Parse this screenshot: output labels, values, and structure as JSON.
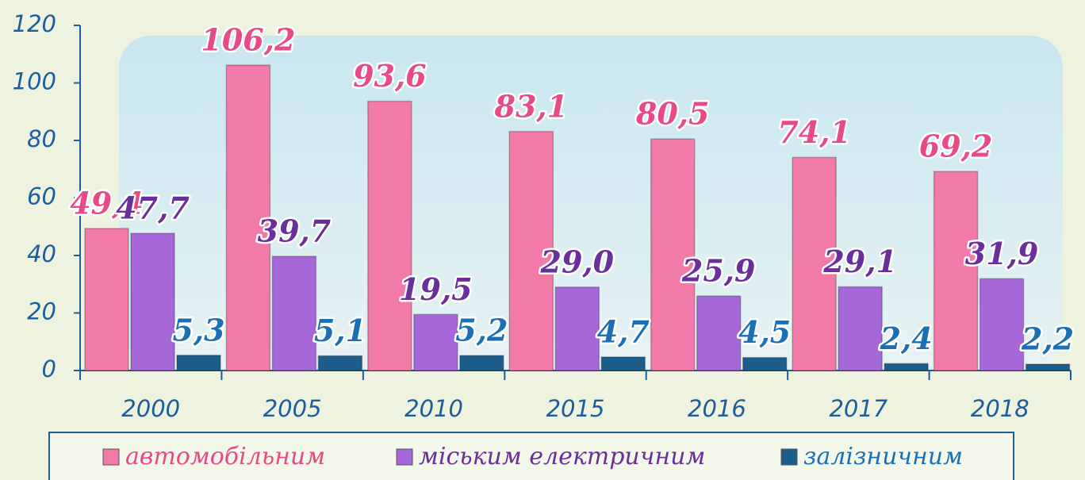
{
  "chart_data": {
    "type": "bar",
    "categories": [
      "2000",
      "2005",
      "2010",
      "2015",
      "2016",
      "2017",
      "2018"
    ],
    "series": [
      {
        "name": "автомобільним",
        "color": "#f27aa8",
        "values": [
          49.4,
          106.2,
          93.6,
          83.1,
          80.5,
          74.1,
          69.2
        ],
        "value_labels": [
          "49,4",
          "106,2",
          "93,6",
          "83,1",
          "80,5",
          "74,1",
          "69,2"
        ]
      },
      {
        "name": "міським електричним",
        "color": "#a668d8",
        "values": [
          47.7,
          39.7,
          19.5,
          29.0,
          25.9,
          29.1,
          31.9
        ],
        "value_labels": [
          "47,7",
          "39,7",
          "19,5",
          "29,0",
          "25,9",
          "29,1",
          "31,9"
        ]
      },
      {
        "name": "залізничним",
        "color": "#1d5d8c",
        "values": [
          5.3,
          5.1,
          5.2,
          4.7,
          4.5,
          2.4,
          2.2
        ],
        "value_labels": [
          "5,3",
          "5,1",
          "5,2",
          "4,7",
          "4,5",
          "2,4",
          "2,2"
        ]
      }
    ],
    "label_colors": [
      "#e84a86",
      "#6a2f9a",
      "#1a6fb5"
    ],
    "ylim": [
      0,
      120
    ],
    "yticks": [
      0,
      20,
      40,
      60,
      80,
      100,
      120
    ],
    "grid": false
  }
}
